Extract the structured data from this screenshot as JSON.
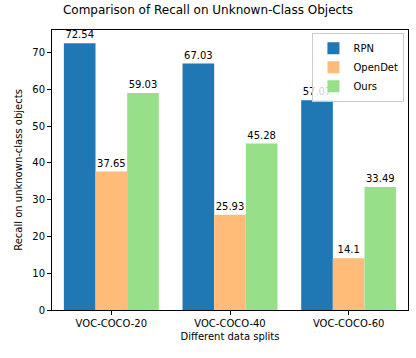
{
  "chart_data": {
    "type": "bar",
    "title": "Comparison of Recall on Unknown-Class Objects",
    "x_label": "Different data splits",
    "y_label": "Recall on unknown-class objects",
    "categories": [
      "VOC-COCO-20",
      "VOC-COCO-40",
      "VOC-COCO-60"
    ],
    "series": [
      {
        "name": "RPN",
        "color": "#1f77b4",
        "values": [
          72.54,
          67.03,
          57.07
        ]
      },
      {
        "name": "OpenDet",
        "color": "#ffbb78",
        "values": [
          37.65,
          25.93,
          14.1
        ]
      },
      {
        "name": "Ours",
        "color": "#98df8a",
        "values": [
          59.03,
          45.28,
          33.49
        ]
      }
    ],
    "ylim": [
      0,
      76.17
    ],
    "yticks": [
      0,
      10,
      20,
      30,
      40,
      50,
      60,
      70
    ],
    "grid": false,
    "legend": "upper right",
    "data_labels": true
  }
}
